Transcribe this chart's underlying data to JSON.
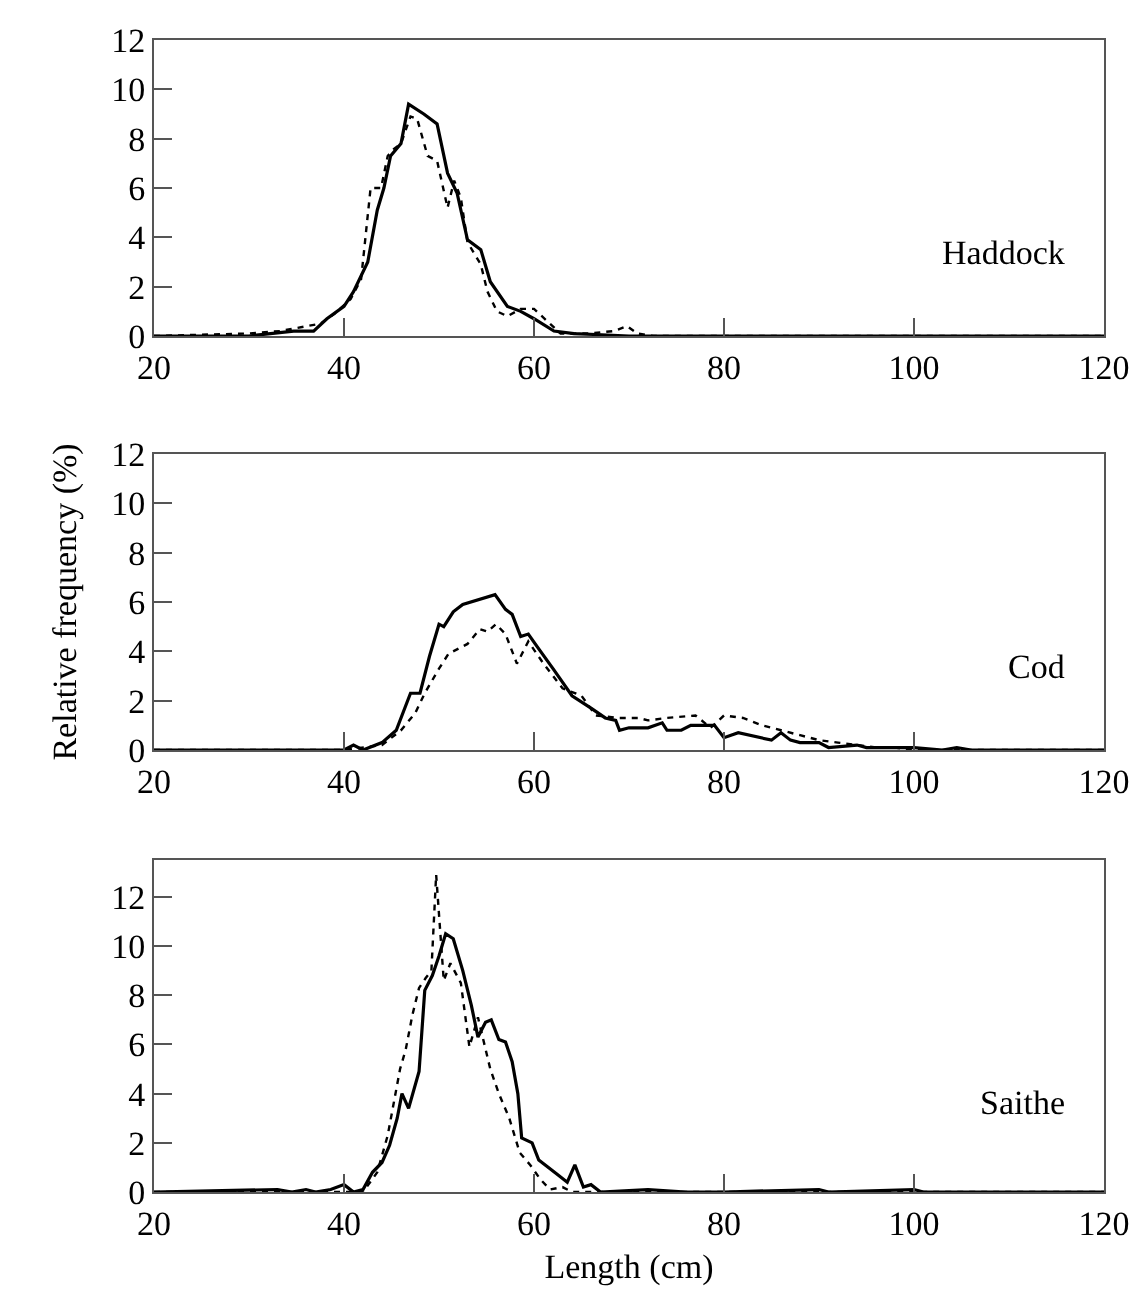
{
  "chart_data": [
    {
      "type": "line",
      "annotations": [
        "Haddock"
      ],
      "xlim": [
        20,
        120
      ],
      "ylim": [
        0,
        12
      ],
      "xticks": [
        20,
        40,
        60,
        80,
        100,
        120
      ],
      "yticks": [
        0,
        2,
        4,
        6,
        8,
        10,
        12
      ],
      "grid": false,
      "marker": "none",
      "series": [
        {
          "color": "#000000",
          "line_style": "solid",
          "x": [
            20,
            30,
            34.7,
            36.8,
            38.2,
            40,
            41,
            42.5,
            43.5,
            44.2,
            44.9,
            46,
            46.8,
            48.4,
            49.8,
            50.9,
            51.9,
            53,
            54.4,
            55.4,
            57.2,
            58.6,
            60,
            62.1,
            64.2,
            70,
            120
          ],
          "values": [
            0,
            0,
            0.2,
            0.2,
            0.7,
            1.2,
            1.8,
            3.0,
            5.1,
            6.0,
            7.3,
            7.8,
            9.4,
            9.0,
            8.6,
            6.6,
            5.8,
            3.9,
            3.5,
            2.2,
            1.2,
            1.0,
            0.7,
            0.2,
            0.1,
            0,
            0
          ]
        },
        {
          "color": "#000000",
          "line_style": "dotted",
          "x": [
            20,
            29.8,
            33.3,
            37.5,
            39,
            40.7,
            41.8,
            42.8,
            43.9,
            44.6,
            45.3,
            46,
            47,
            47.7,
            48.8,
            49.8,
            50.9,
            51.6,
            52.3,
            53,
            54.4,
            55.1,
            56.1,
            57.2,
            58.6,
            60,
            61.4,
            62.8,
            65.6,
            68.4,
            69.8,
            70.9,
            72.6,
            120
          ],
          "values": [
            0,
            0.1,
            0.2,
            0.5,
            0.9,
            1.5,
            2.3,
            6.0,
            6.0,
            7.3,
            7.6,
            7.8,
            8.9,
            8.8,
            7.3,
            7.1,
            5.2,
            6.3,
            5.6,
            3.8,
            2.9,
            1.8,
            1.0,
            0.8,
            1.1,
            1.1,
            0.6,
            0.1,
            0.1,
            0.2,
            0.4,
            0.1,
            0,
            0
          ]
        }
      ]
    },
    {
      "type": "line",
      "ylabel": "Relative frequency (%)",
      "annotations": [
        "Cod"
      ],
      "xlim": [
        20,
        120
      ],
      "ylim": [
        0,
        12
      ],
      "xticks": [
        20,
        40,
        60,
        80,
        100,
        120
      ],
      "yticks": [
        0,
        2,
        4,
        6,
        8,
        10,
        12
      ],
      "grid": false,
      "marker": "none",
      "series": [
        {
          "color": "#000000",
          "line_style": "solid",
          "x": [
            20,
            40,
            41,
            42,
            44,
            45.5,
            47,
            48,
            49,
            50,
            50.5,
            51.5,
            52.5,
            55.9,
            57,
            57.7,
            58.6,
            59.4,
            60.5,
            62,
            64,
            66,
            67.5,
            68.6,
            69,
            70,
            72,
            73.5,
            74,
            75.5,
            76.5,
            79,
            80,
            81.5,
            85,
            86,
            87,
            88,
            90,
            91,
            94,
            95,
            98,
            100,
            103,
            104.5,
            106,
            120
          ],
          "values": [
            0,
            0,
            0.2,
            0,
            0.3,
            0.8,
            2.3,
            2.3,
            3.8,
            5.1,
            5.0,
            5.6,
            5.9,
            6.3,
            5.7,
            5.5,
            4.6,
            4.7,
            4.1,
            3.3,
            2.2,
            1.7,
            1.3,
            1.2,
            0.8,
            0.9,
            0.9,
            1.1,
            0.8,
            0.8,
            1.0,
            1.0,
            0.5,
            0.7,
            0.4,
            0.7,
            0.4,
            0.3,
            0.3,
            0.1,
            0.2,
            0.1,
            0.1,
            0.1,
            0,
            0.1,
            0,
            0
          ]
        },
        {
          "color": "#000000",
          "line_style": "dotted",
          "x": [
            20,
            40,
            44,
            46,
            47.5,
            48.5,
            50,
            51,
            53,
            54.3,
            55.1,
            56,
            57,
            58.2,
            59.4,
            61,
            63,
            65,
            66.5,
            69,
            71,
            72,
            74,
            77,
            78.6,
            80,
            82,
            84,
            86,
            88,
            90,
            92,
            94,
            96,
            98,
            100,
            120
          ],
          "values": [
            0,
            0,
            0.2,
            0.8,
            1.5,
            2.3,
            3.3,
            3.9,
            4.3,
            4.9,
            4.8,
            5.1,
            4.7,
            3.5,
            4.4,
            3.5,
            2.5,
            2.2,
            1.4,
            1.3,
            1.3,
            1.2,
            1.3,
            1.4,
            0.9,
            1.4,
            1.3,
            1.0,
            0.8,
            0.6,
            0.4,
            0.3,
            0.2,
            0.1,
            0.1,
            0,
            0
          ]
        }
      ]
    },
    {
      "type": "line",
      "xlabel": "Length (cm)",
      "annotations": [
        "Saithe"
      ],
      "xlim": [
        20,
        120
      ],
      "ylim": [
        0,
        13.5
      ],
      "xticks": [
        20,
        40,
        60,
        80,
        100,
        120
      ],
      "yticks": [
        0,
        2,
        4,
        6,
        8,
        10,
        12
      ],
      "grid": false,
      "marker": "none",
      "series": [
        {
          "color": "#000000",
          "line_style": "solid",
          "x": [
            20,
            33,
            34.5,
            36,
            37,
            38.6,
            40,
            41,
            42,
            43,
            44,
            44.8,
            45.6,
            46.1,
            46.8,
            47.9,
            48.5,
            49.3,
            50,
            50.7,
            51.5,
            52.5,
            53.4,
            54.1,
            54.9,
            55.5,
            56.3,
            57,
            57.7,
            58.3,
            58.7,
            59.8,
            60.5,
            62.5,
            63.5,
            64.3,
            65.2,
            66,
            67,
            72,
            76,
            80,
            90,
            91,
            100,
            101,
            120
          ],
          "values": [
            0,
            0.1,
            0,
            0.1,
            0,
            0.1,
            0.3,
            0,
            0.1,
            0.8,
            1.2,
            1.9,
            3.0,
            4.0,
            3.4,
            4.9,
            8.2,
            8.8,
            9.6,
            10.5,
            10.3,
            9.0,
            7.6,
            6.3,
            6.9,
            7.0,
            6.2,
            6.1,
            5.3,
            4.0,
            2.2,
            2.0,
            1.3,
            0.7,
            0.4,
            1.1,
            0.2,
            0.3,
            0,
            0.1,
            0,
            0,
            0.1,
            0,
            0.1,
            0,
            0
          ]
        },
        {
          "color": "#000000",
          "line_style": "dotted",
          "x": [
            20,
            42,
            43.5,
            44.6,
            45.9,
            46.5,
            47.2,
            47.9,
            48.6,
            49.2,
            49.7,
            50.5,
            51.2,
            52.3,
            53.2,
            54.1,
            55.4,
            56.3,
            57.4,
            58.5,
            59.6,
            60.7,
            61.7,
            63,
            64,
            70,
            120
          ],
          "values": [
            0,
            0,
            0.8,
            2.3,
            5.0,
            5.8,
            7.2,
            8.3,
            8.7,
            9.0,
            12.9,
            8.6,
            9.3,
            8.5,
            5.9,
            7.1,
            5.0,
            4.0,
            3.0,
            1.6,
            1.1,
            0.5,
            0.1,
            0.2,
            0,
            0,
            0
          ]
        }
      ]
    }
  ]
}
